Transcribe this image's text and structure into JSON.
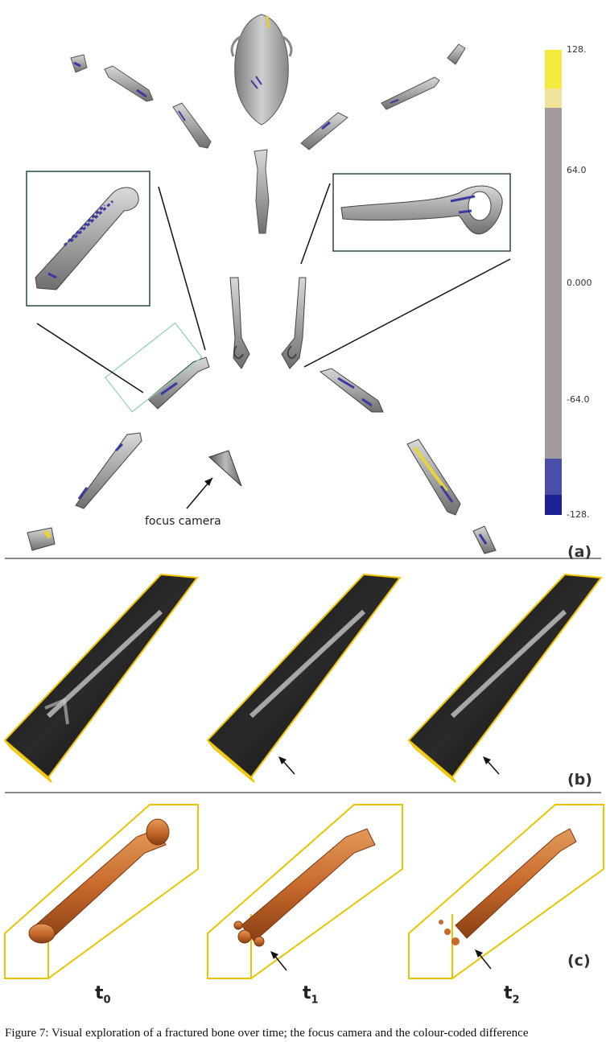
{
  "panel_a": {
    "label": "(a)",
    "camera_annotation": "focus camera",
    "colorbar": {
      "ticks": [
        "128.",
        "64.0",
        "0.000",
        "-64.0",
        "-128."
      ],
      "colors": {
        "high": "#f2ea3c",
        "high_soft": "#efe49a",
        "neutral": "#a49c9b",
        "low_soft": "#4a4ea8",
        "low": "#1e1f96"
      }
    }
  },
  "panel_b": {
    "label": "(b)"
  },
  "panel_c": {
    "label": "(c)",
    "times": [
      {
        "base": "t",
        "sub": "0"
      },
      {
        "base": "t",
        "sub": "1"
      },
      {
        "base": "t",
        "sub": "2"
      }
    ]
  },
  "caption_fragment": "Figure 7: Visual exploration of a fractured bone over time; the focus camera and the colour-coded difference"
}
